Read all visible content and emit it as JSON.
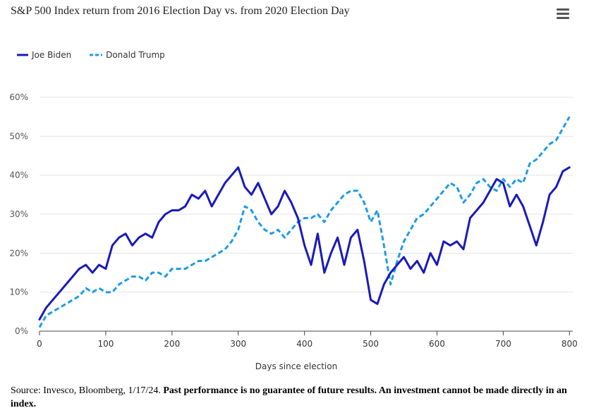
{
  "title": "S&P 500 Index return from 2016 Election Day vs. from 2020 Election Day",
  "menu_icon": "hamburger-menu-icon",
  "legend": [
    {
      "label": "Joe Biden",
      "color": "#1a1aba",
      "style": "solid"
    },
    {
      "label": "Donald Trump",
      "color": "#1e9be6",
      "style": "dashed"
    }
  ],
  "source": {
    "plain": "Source: Invesco, Bloomberg, 1/17/24.",
    "bold": " Past performance is no guarantee of future results. An investment cannot be made directly in an index."
  },
  "chart_data": {
    "type": "line",
    "title": "S&P 500 Index return from 2016 Election Day vs. from 2020 Election Day",
    "xlabel": "Days since election",
    "ylabel": "",
    "xlim": [
      0,
      805
    ],
    "ylim": [
      0,
      60
    ],
    "x_ticks": [
      0,
      100,
      200,
      300,
      400,
      500,
      600,
      700,
      800
    ],
    "y_ticks": [
      0,
      10,
      20,
      30,
      40,
      50,
      60
    ],
    "y_tick_labels": [
      "0%",
      "10%",
      "20%",
      "30%",
      "40%",
      "50%",
      "60%"
    ],
    "grid": true,
    "legend_position": "top-left",
    "series": [
      {
        "name": "Joe Biden",
        "color": "#1a1aba",
        "x": [
          0,
          10,
          20,
          30,
          40,
          50,
          60,
          70,
          80,
          90,
          100,
          110,
          120,
          130,
          140,
          150,
          160,
          170,
          180,
          190,
          200,
          210,
          220,
          230,
          240,
          250,
          260,
          270,
          280,
          290,
          300,
          310,
          320,
          330,
          340,
          350,
          360,
          370,
          380,
          390,
          400,
          410,
          420,
          430,
          440,
          450,
          460,
          470,
          480,
          490,
          500,
          510,
          520,
          530,
          540,
          550,
          560,
          570,
          580,
          590,
          600,
          610,
          620,
          630,
          640,
          650,
          660,
          670,
          680,
          690,
          700,
          710,
          720,
          730,
          740,
          750,
          760,
          770,
          780,
          790,
          800
        ],
        "y": [
          3,
          6,
          8,
          10,
          12,
          14,
          16,
          17,
          15,
          17,
          16,
          22,
          24,
          25,
          22,
          24,
          25,
          24,
          28,
          30,
          31,
          31,
          32,
          35,
          34,
          36,
          32,
          35,
          38,
          40,
          42,
          37,
          35,
          38,
          34,
          30,
          32,
          36,
          33,
          29,
          22,
          17,
          25,
          15,
          20,
          24,
          17,
          24,
          26,
          18,
          8,
          7,
          12,
          15,
          17,
          19,
          16,
          18,
          15,
          20,
          17,
          23,
          22,
          23,
          21,
          29,
          31,
          33,
          36,
          39,
          38,
          32,
          35,
          32,
          27,
          22,
          28,
          35,
          37,
          41,
          42
        ]
      },
      {
        "name": "Donald Trump",
        "color": "#1e9be6",
        "x": [
          0,
          10,
          20,
          30,
          40,
          50,
          60,
          70,
          80,
          90,
          100,
          110,
          120,
          130,
          140,
          150,
          160,
          170,
          180,
          190,
          200,
          210,
          220,
          230,
          240,
          250,
          260,
          270,
          280,
          290,
          300,
          310,
          320,
          330,
          340,
          350,
          360,
          370,
          380,
          390,
          400,
          410,
          420,
          430,
          440,
          450,
          460,
          470,
          480,
          490,
          500,
          510,
          520,
          530,
          540,
          550,
          560,
          570,
          580,
          590,
          600,
          610,
          620,
          630,
          640,
          650,
          660,
          670,
          680,
          690,
          700,
          710,
          720,
          730,
          740,
          750,
          760,
          770,
          780,
          790,
          800
        ],
        "y": [
          1,
          4,
          5,
          6,
          7,
          8,
          9,
          11,
          10,
          11,
          10,
          10,
          12,
          13,
          14,
          14,
          13,
          15,
          15,
          14,
          16,
          16,
          16,
          17,
          18,
          18,
          19,
          20,
          21,
          23,
          26,
          32,
          31,
          28,
          26,
          25,
          26,
          24,
          26,
          28,
          29,
          29,
          30,
          28,
          31,
          33,
          35,
          36,
          36,
          33,
          28,
          31,
          22,
          12,
          18,
          23,
          26,
          29,
          30,
          32,
          34,
          36,
          38,
          37,
          33,
          35,
          38,
          39,
          37,
          36,
          39,
          37,
          39,
          38,
          43,
          44,
          46,
          48,
          49,
          52,
          55
        ]
      }
    ]
  }
}
